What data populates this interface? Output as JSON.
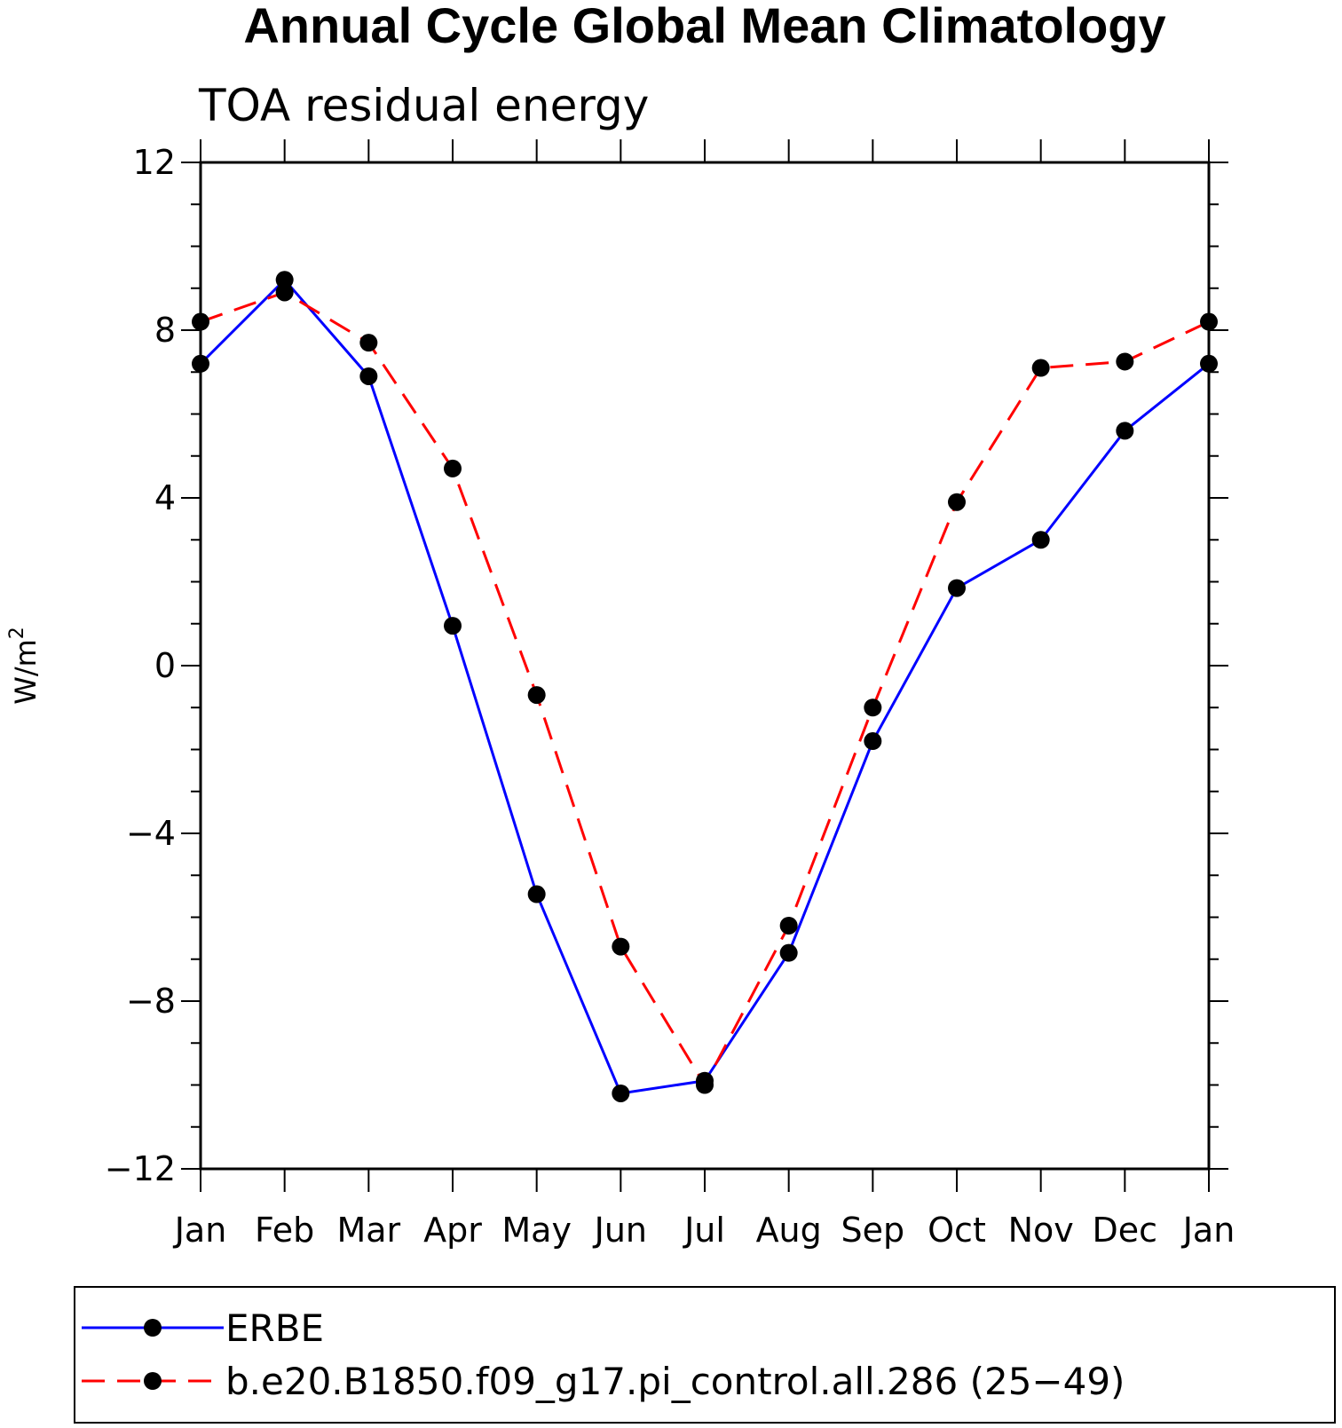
{
  "chart_data": {
    "type": "line",
    "title": "Annual Cycle Global Mean Climatology",
    "subtitle": "TOA residual energy",
    "xlabel": "",
    "ylabel_base": "W/m",
    "ylabel_sup": "2",
    "categories": [
      "Jan",
      "Feb",
      "Mar",
      "Apr",
      "May",
      "Jun",
      "Jul",
      "Aug",
      "Sep",
      "Oct",
      "Nov",
      "Dec",
      "Jan"
    ],
    "ylim": [
      -12,
      12
    ],
    "yticks": [
      12,
      8,
      4,
      0,
      -4,
      -8,
      -12
    ],
    "ytick_labels": [
      "12",
      "8",
      "4",
      "0",
      "−4",
      "−8",
      "−12"
    ],
    "series": [
      {
        "name": "ERBE",
        "color": "#0000ff",
        "dash": "solid",
        "values": [
          7.2,
          9.2,
          6.9,
          0.95,
          -5.45,
          -10.2,
          -9.9,
          -6.85,
          -1.8,
          1.85,
          3.0,
          5.6,
          7.2
        ]
      },
      {
        "name": "b.e20.B1850.f09_g17.pi_control.all.286 (25−49)",
        "color": "#ff0000",
        "dash": "dashed",
        "values": [
          8.2,
          8.9,
          7.7,
          4.7,
          -0.7,
          -6.7,
          -10.0,
          -6.2,
          -1.0,
          3.9,
          7.1,
          7.25,
          8.2
        ]
      }
    ],
    "marker": "filled-circle",
    "marker_color": "#000000",
    "legend_position": "bottom"
  }
}
